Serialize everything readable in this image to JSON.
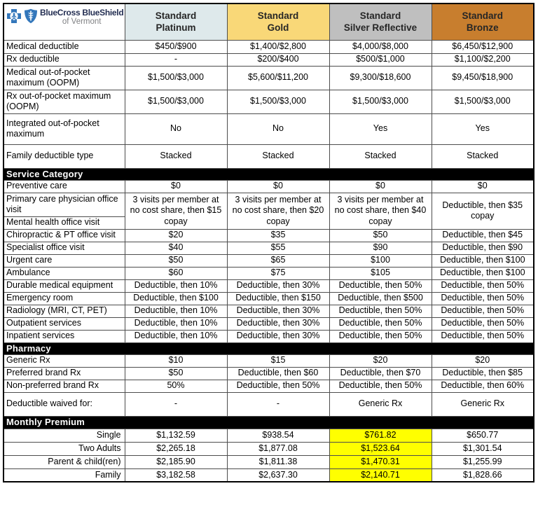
{
  "logo": {
    "title": "BlueCross BlueShield",
    "subtitle": "of Vermont"
  },
  "colors": {
    "platinum_bg": "#dee9eb",
    "gold_bg": "#f9d878",
    "silver_bg": "#bfbfbf",
    "bronze_bg": "#c87e2e",
    "highlight": "#ffff00",
    "section_bg": "#000000",
    "section_text": "#ffffff",
    "logo_blue": "#3377bb",
    "logo_title": "#232e52",
    "logo_subtitle": "#7f8083"
  },
  "plans": [
    {
      "line1": "Standard",
      "line2": "Platinum",
      "color_key": "platinum_bg"
    },
    {
      "line1": "Standard",
      "line2": "Gold",
      "color_key": "gold_bg"
    },
    {
      "line1": "Standard",
      "line2": "Silver Reflective",
      "color_key": "silver_bg"
    },
    {
      "line1": "Standard",
      "line2": "Bronze",
      "color_key": "bronze_bg"
    }
  ],
  "table": {
    "rows": [
      {
        "kind": "data",
        "label": "Medical deductible",
        "values": [
          "$450/$900",
          "$1,400/$2,800",
          "$4,000/$8,000",
          "$6,450/$12,900"
        ]
      },
      {
        "kind": "data",
        "label": "Rx deductible",
        "values": [
          "-",
          "$200/$400",
          "$500/$1,000",
          "$1,100/$2,200"
        ]
      },
      {
        "kind": "data",
        "label": "Medical out-of-pocket maximum (OOPM)",
        "values": [
          "$1,500/$3,000",
          "$5,600/$11,200",
          "$9,300/$18,600",
          "$9,450/$18,900"
        ]
      },
      {
        "kind": "data",
        "label": "Rx out-of-pocket maximum (OOPM)",
        "values": [
          "$1,500/$3,000",
          "$1,500/$3,000",
          "$1,500/$3,000",
          "$1,500/$3,000"
        ]
      },
      {
        "kind": "data",
        "label": "Integrated out-of-pocket maximum",
        "values": [
          "No",
          "No",
          "Yes",
          "Yes"
        ]
      },
      {
        "kind": "data",
        "label": "Family deductible type",
        "values": [
          "Stacked",
          "Stacked",
          "Stacked",
          "Stacked"
        ]
      },
      {
        "kind": "section",
        "label": "Service Category"
      },
      {
        "kind": "data",
        "label": "Preventive care",
        "values": [
          "$0",
          "$0",
          "$0",
          "$0"
        ]
      },
      {
        "kind": "merged2",
        "labels": [
          "Primary care physician office visit",
          "Mental health office visit"
        ],
        "values": [
          "3 visits per member at no cost share, then $15 copay",
          "3 visits per member at no cost share, then $20 copay",
          "3 visits per member at no cost share, then $40 copay",
          "Deductible, then $35 copay"
        ]
      },
      {
        "kind": "data",
        "label": "Chiropractic & PT office visit",
        "values": [
          "$20",
          "$35",
          "$50",
          "Deductible, then $45"
        ]
      },
      {
        "kind": "data",
        "label": "Specialist office visit",
        "values": [
          "$40",
          "$55",
          "$90",
          "Deductible, then $90"
        ]
      },
      {
        "kind": "data",
        "label": "Urgent care",
        "values": [
          "$50",
          "$65",
          "$100",
          "Deductible, then $100"
        ]
      },
      {
        "kind": "data",
        "label": "Ambulance",
        "values": [
          "$60",
          "$75",
          "$105",
          "Deductible, then $100"
        ]
      },
      {
        "kind": "data",
        "label": "Durable medical equipment",
        "values": [
          "Deductible, then 10%",
          "Deductible, then 30%",
          "Deductible, then 50%",
          "Deductible, then 50%"
        ]
      },
      {
        "kind": "data",
        "label": "Emergency room",
        "values": [
          "Deductible, then $100",
          "Deductible, then $150",
          "Deductible, then $500",
          "Deductible, then 50%"
        ]
      },
      {
        "kind": "data",
        "label": "Radiology (MRI, CT, PET)",
        "values": [
          "Deductible, then 10%",
          "Deductible, then 30%",
          "Deductible, then 50%",
          "Deductible, then 50%"
        ]
      },
      {
        "kind": "data",
        "label": "Outpatient services",
        "values": [
          "Deductible, then 10%",
          "Deductible, then 30%",
          "Deductible, then 50%",
          "Deductible, then 50%"
        ]
      },
      {
        "kind": "data",
        "label": "Inpatient services",
        "values": [
          "Deductible, then 10%",
          "Deductible, then 30%",
          "Deductible, then 50%",
          "Deductible, then 50%"
        ]
      },
      {
        "kind": "section",
        "label": "Pharmacy"
      },
      {
        "kind": "data",
        "label": "Generic Rx",
        "values": [
          "$10",
          "$15",
          "$20",
          "$20"
        ]
      },
      {
        "kind": "data",
        "label": "Preferred brand Rx",
        "values": [
          "$50",
          "Deductible, then $60",
          "Deductible, then $70",
          "Deductible, then $85"
        ]
      },
      {
        "kind": "data",
        "label": "Non-preferred brand Rx",
        "values": [
          "50%",
          "Deductible, then 50%",
          "Deductible, then 50%",
          "Deductible, then 60%"
        ]
      },
      {
        "kind": "data",
        "label": "Deductible waived for:",
        "values": [
          "-",
          "-",
          "Generic Rx",
          "Generic Rx"
        ]
      },
      {
        "kind": "section",
        "label": "Monthly Premium"
      },
      {
        "kind": "data",
        "label": "Single",
        "label_align": "right",
        "values": [
          "$1,132.59",
          "$938.54",
          "$761.82",
          "$650.77"
        ],
        "highlight": [
          2
        ]
      },
      {
        "kind": "data",
        "label": "Two Adults",
        "label_align": "right",
        "values": [
          "$2,265.18",
          "$1,877.08",
          "$1,523.64",
          "$1,301.54"
        ],
        "highlight": [
          2
        ]
      },
      {
        "kind": "data",
        "label": "Parent & child(ren)",
        "label_align": "right",
        "values": [
          "$2,185.90",
          "$1,811.38",
          "$1,470.31",
          "$1,255.99"
        ],
        "highlight": [
          2
        ]
      },
      {
        "kind": "data",
        "label": "Family",
        "label_align": "right",
        "values": [
          "$3,182.58",
          "$2,637.30",
          "$2,140.71",
          "$1,828.66"
        ],
        "highlight": [
          2
        ]
      }
    ]
  }
}
